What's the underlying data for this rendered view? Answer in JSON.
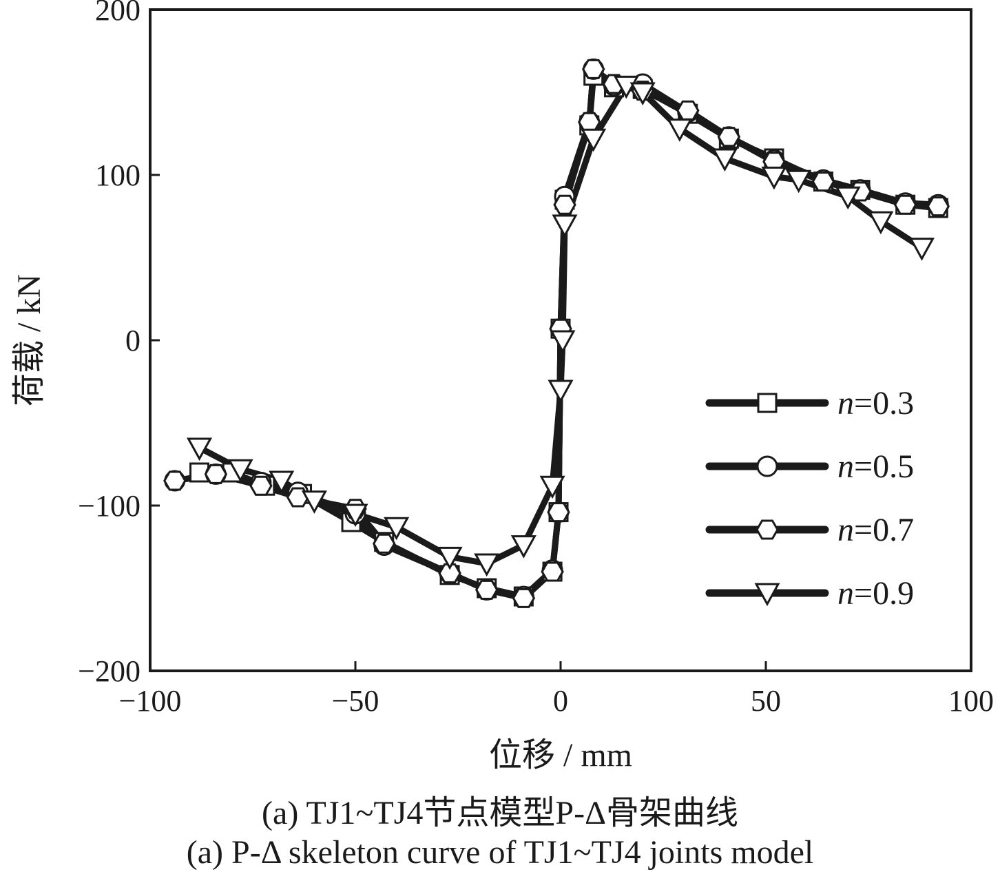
{
  "chart_data": {
    "type": "line",
    "xlabel": "位移 / mm",
    "ylabel": "荷载 / kN",
    "xlim": [
      -100,
      100
    ],
    "ylim": [
      -200,
      200
    ],
    "x_ticks": [
      -100,
      -50,
      0,
      50,
      100
    ],
    "y_ticks": [
      -200,
      -100,
      0,
      100,
      200
    ],
    "x_tick_labels": [
      "−100",
      "−50",
      "0",
      "50",
      "100"
    ],
    "y_tick_labels": [
      "−200",
      "−100",
      "0",
      "100",
      "200"
    ],
    "grid": false,
    "legend_position": "center-right",
    "series": [
      {
        "name": "n=0.3",
        "marker": "square",
        "x": [
          -88,
          -80,
          -72,
          -63,
          -51,
          -43,
          -27,
          -18,
          -9,
          -2,
          -0.5,
          0,
          1,
          7,
          8,
          13,
          20,
          31,
          41,
          52,
          64,
          73,
          84,
          92
        ],
        "y": [
          -80,
          -80,
          -88,
          -93,
          -110,
          -122,
          -142,
          -150,
          -155,
          -140,
          -104,
          7,
          85,
          130,
          160,
          153,
          152,
          137,
          122,
          110,
          96,
          91,
          82,
          80
        ]
      },
      {
        "name": "n=0.5",
        "marker": "circle",
        "x": [
          -94,
          -84,
          -73,
          -64,
          -50,
          -43,
          -27,
          -18,
          -9,
          -2,
          -0.5,
          0,
          1,
          7,
          8,
          13,
          20,
          31,
          41,
          52,
          64,
          73,
          84,
          92
        ],
        "y": [
          -85,
          -81,
          -86,
          -92,
          -105,
          -124,
          -141,
          -151,
          -155,
          -139,
          -104,
          7,
          87,
          132,
          164,
          154,
          155,
          138,
          123,
          109,
          97,
          91,
          83,
          82
        ]
      },
      {
        "name": "n=0.7",
        "marker": "hexagon",
        "x": [
          -94,
          -84,
          -73,
          -64,
          -50,
          -43,
          -27,
          -18,
          -9,
          -2,
          -0.5,
          0,
          1,
          7,
          8,
          13,
          20,
          31,
          41,
          52,
          64,
          73,
          84,
          92
        ],
        "y": [
          -85,
          -81,
          -88,
          -95,
          -102,
          -123,
          -141,
          -151,
          -156,
          -140,
          -104,
          7,
          82,
          132,
          164,
          155,
          151,
          139,
          123,
          108,
          96,
          90,
          82,
          81
        ]
      },
      {
        "name": "n=0.9",
        "marker": "triangle-down",
        "x": [
          -88,
          -78,
          -68,
          -60,
          -50,
          -40,
          -27,
          -18,
          -9,
          -2,
          0,
          0.5,
          1,
          8,
          16,
          20,
          29,
          40,
          52,
          58,
          70,
          78,
          88
        ],
        "y": [
          -65,
          -78,
          -85,
          -97,
          -105,
          -113,
          -131,
          -135,
          -124,
          -88,
          -30,
          0,
          70,
          122,
          154,
          150,
          128,
          110,
          99,
          97,
          87,
          72,
          56
        ]
      }
    ]
  },
  "captions": {
    "zh": "(a)  TJ1~TJ4节点模型P-Δ骨架曲线",
    "en": "(a)  P-Δ skeleton curve of TJ1~TJ4 joints model"
  }
}
